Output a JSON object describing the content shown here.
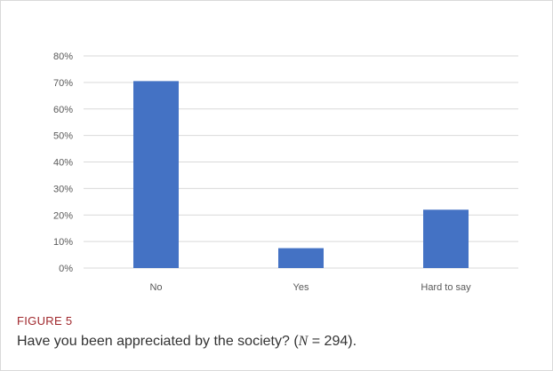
{
  "figure": {
    "label": "FIGURE 5",
    "caption_pre": "Have you been appreciated by the society? (",
    "caption_var": "N",
    "caption_post": " = 294)."
  },
  "colors": {
    "bar": "#4472c4",
    "grid": "#d9d9d9",
    "label": "#a0282d"
  },
  "chart_data": {
    "type": "bar",
    "categories": [
      "No",
      "Yes",
      "Hard to say"
    ],
    "values": [
      70.5,
      7.5,
      22
    ],
    "ylim": [
      0,
      80
    ],
    "yticks": [
      0,
      10,
      20,
      30,
      40,
      50,
      60,
      70,
      80
    ],
    "ytick_format": "percent",
    "grid": true,
    "title": "",
    "xlabel": "",
    "ylabel": ""
  }
}
